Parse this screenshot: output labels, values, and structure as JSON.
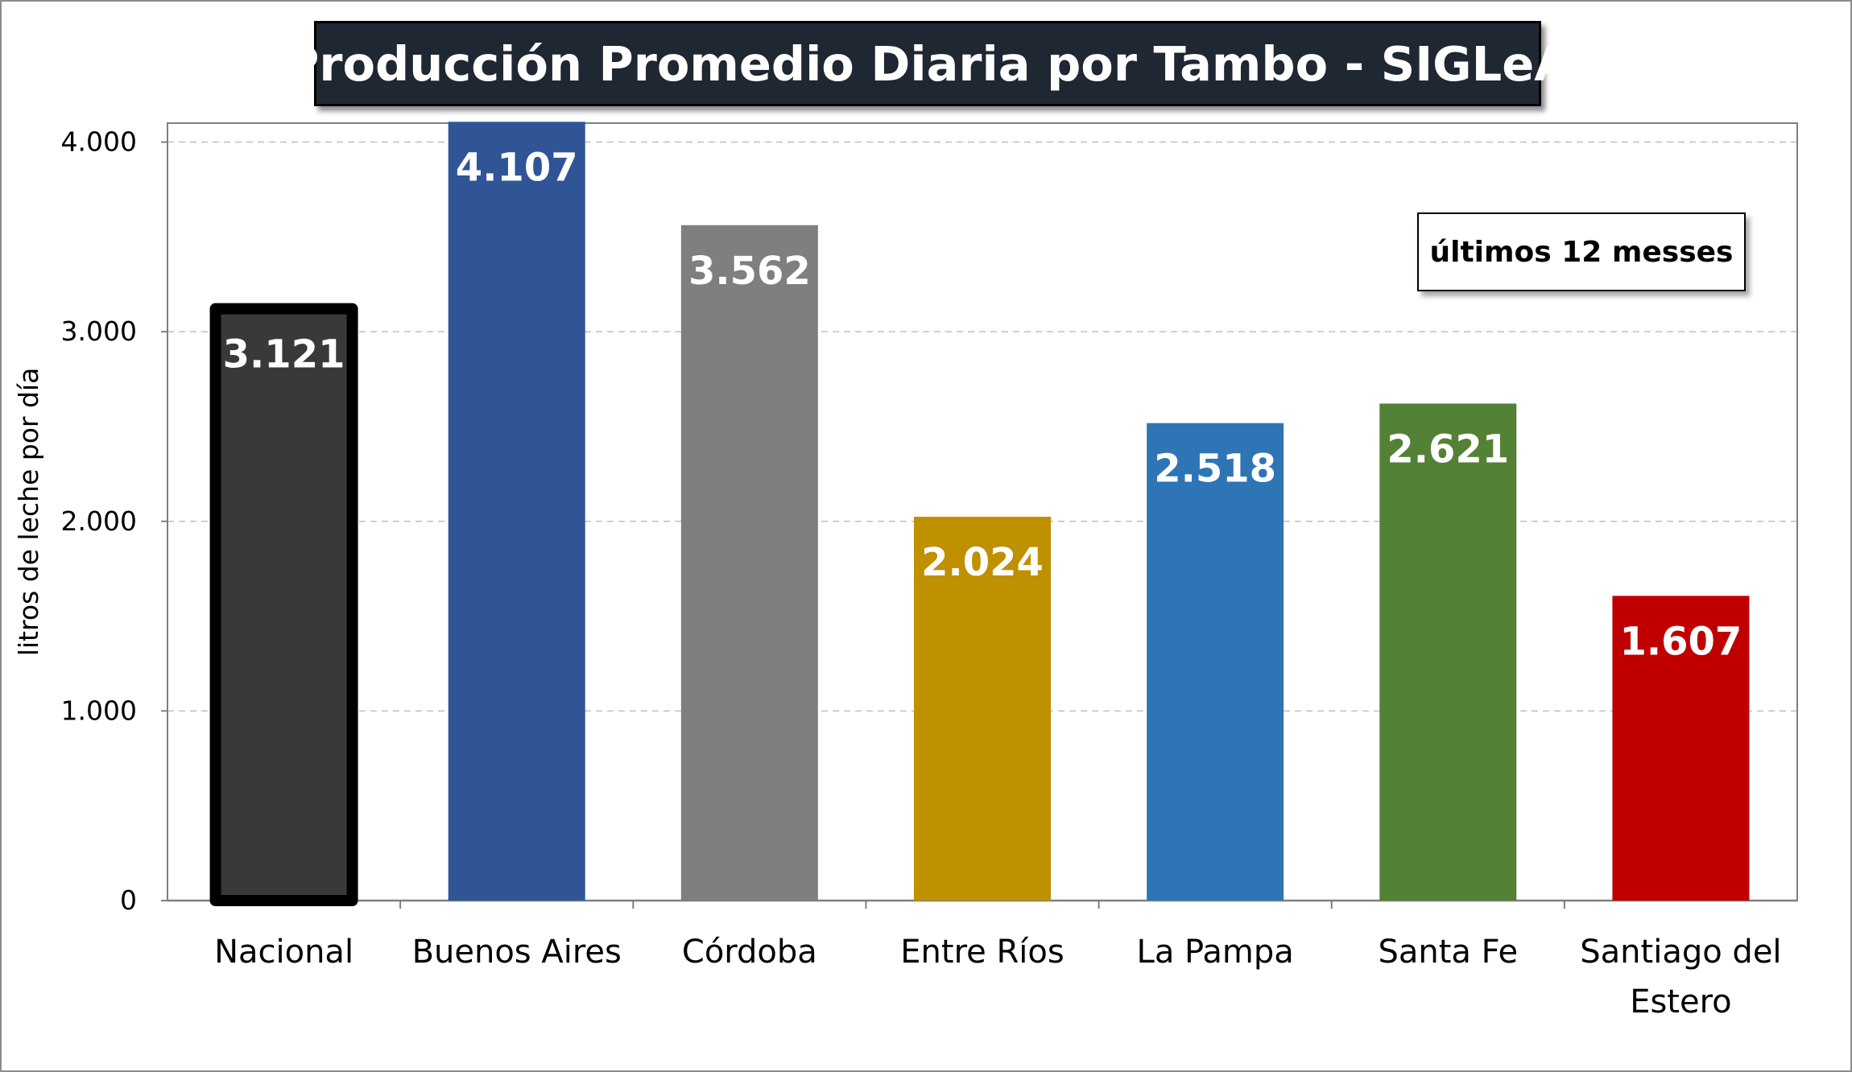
{
  "chart_data": {
    "type": "bar",
    "title": "Producción Promedio Diaria por Tambo - SIGLeA",
    "annotation": "últimos 12 messes",
    "xlabel": "",
    "ylabel": "litros de leche por día",
    "ylim": [
      0,
      4100
    ],
    "yticks": [
      0,
      1000,
      2000,
      3000,
      4000
    ],
    "ytick_labels": [
      "0",
      "1.000",
      "2.000",
      "3.000",
      "4.000"
    ],
    "grid": true,
    "categories": [
      "Nacional",
      "Buenos Aires",
      "Córdoba",
      "Entre Ríos",
      "La Pampa",
      "Santa Fe",
      "Santiago del Estero"
    ],
    "category_lines": [
      [
        "Nacional"
      ],
      [
        "Buenos Aires"
      ],
      [
        "Córdoba"
      ],
      [
        "Entre Ríos"
      ],
      [
        "La Pampa"
      ],
      [
        "Santa Fe"
      ],
      [
        "Santiago del",
        "Estero"
      ]
    ],
    "values": [
      3121,
      4107,
      3562,
      2024,
      2518,
      2621,
      1607
    ],
    "value_labels": [
      "3.121",
      "4.107",
      "3.562",
      "2.024",
      "2.518",
      "2.621",
      "1.607"
    ],
    "colors": [
      "#3a3838",
      "#2f5597",
      "#7f7f7f",
      "#bf9000",
      "#2e75b6",
      "#538135",
      "#c00000"
    ],
    "highlight": "Nacional"
  }
}
